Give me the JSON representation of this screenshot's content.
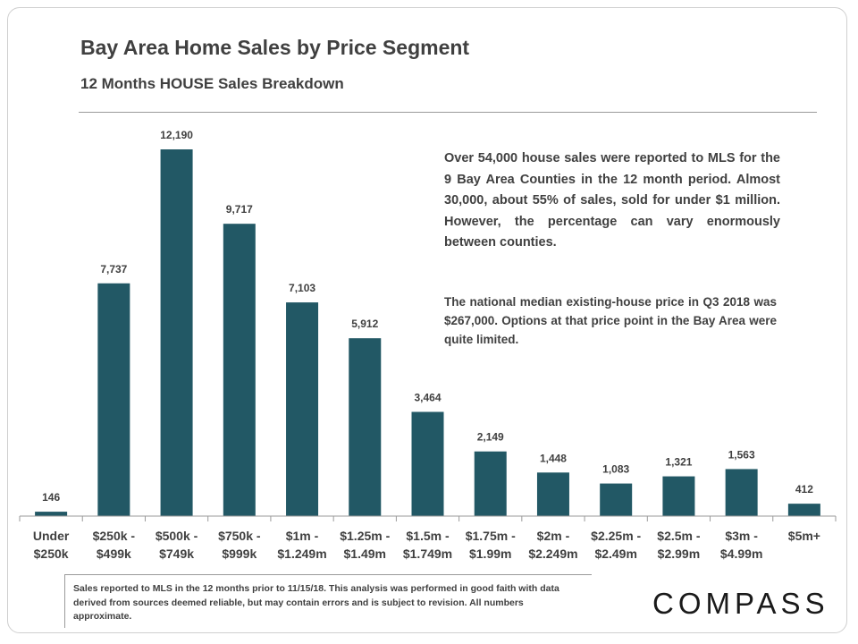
{
  "title": "Bay Area Home Sales by Price Segment",
  "subtitle": "12 Months HOUSE Sales Breakdown",
  "notes": {
    "main": "Over 54,000 house sales were reported to MLS for the 9 Bay Area Counties in the 12 month period. Almost 30,000, about 55% of sales, sold for under $1 million. However, the percentage can vary enormously between counties.",
    "secondary": "The national median existing-house price in Q3 2018 was $267,000. Options at that price point in the Bay Area were quite limited."
  },
  "footnote": "Sales reported to MLS in the 12 months prior to 11/15/18. This analysis was performed in good faith with data derived from sources deemed reliable, but may contain errors and is subject to revision. All numbers approximate.",
  "logo": "COMPASS",
  "colors": {
    "bar": "#225865",
    "text": "#404040"
  },
  "chart_data": {
    "type": "bar",
    "title": "Bay Area Home Sales by Price Segment",
    "subtitle": "12 Months HOUSE Sales Breakdown",
    "xlabel": "",
    "ylabel": "",
    "ylim": [
      0,
      12190
    ],
    "grid": false,
    "categories": [
      [
        "Under",
        "$250k"
      ],
      [
        "$250k -",
        "$499k"
      ],
      [
        "$500k -",
        "$749k"
      ],
      [
        "$750k -",
        "$999k"
      ],
      [
        "$1m -",
        "$1.249m"
      ],
      [
        "$1.25m -",
        "$1.49m"
      ],
      [
        "$1.5m -",
        "$1.749m"
      ],
      [
        "$1.75m -",
        "$1.99m"
      ],
      [
        "$2m -",
        "$2.249m"
      ],
      [
        "$2.25m -",
        "$2.49m"
      ],
      [
        "$2.5m -",
        "$2.99m"
      ],
      [
        "$3m -",
        "$4.99m"
      ],
      [
        "$5m+"
      ]
    ],
    "values": [
      146,
      7737,
      12190,
      9717,
      7103,
      5912,
      3464,
      2149,
      1448,
      1083,
      1321,
      1563,
      412
    ],
    "value_labels": [
      "146",
      "7,737",
      "12,190",
      "9,717",
      "7,103",
      "5,912",
      "3,464",
      "2,149",
      "1,448",
      "1,083",
      "1,321",
      "1,563",
      "412"
    ]
  }
}
